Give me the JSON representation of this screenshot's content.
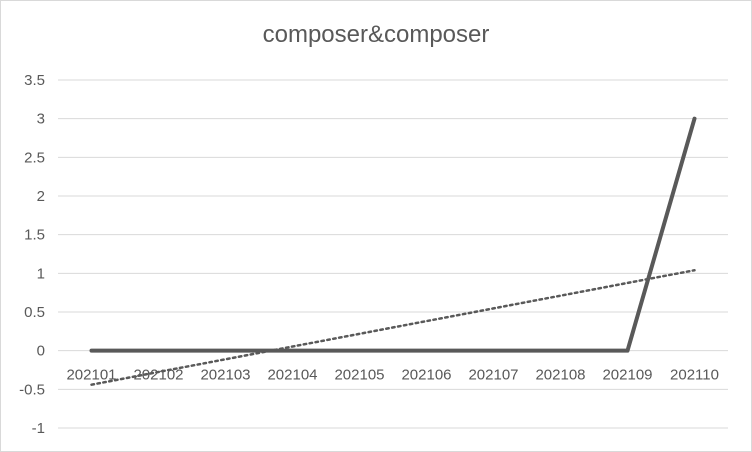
{
  "chart_data": {
    "type": "line",
    "title": "composer&composer",
    "categories": [
      "202101",
      "202102",
      "202103",
      "202104",
      "202105",
      "202106",
      "202107",
      "202108",
      "202109",
      "202110"
    ],
    "series": [
      {
        "values": [
          0,
          0,
          0,
          0,
          0,
          0,
          0,
          0,
          0,
          3
        ]
      }
    ],
    "trendline": {
      "type": "linear",
      "start": -0.44,
      "end": 1.04
    },
    "ylim": [
      -1,
      3.5
    ],
    "yticks": [
      "3.5",
      "3",
      "2.5",
      "2",
      "1.5",
      "1",
      "0.5",
      "0",
      "-0.5",
      "-1"
    ],
    "grid": true,
    "legend": "none",
    "colors": {
      "series": "#595959",
      "trendline": "#595959",
      "grid": "#d9d9d9",
      "text": "#595959"
    }
  }
}
